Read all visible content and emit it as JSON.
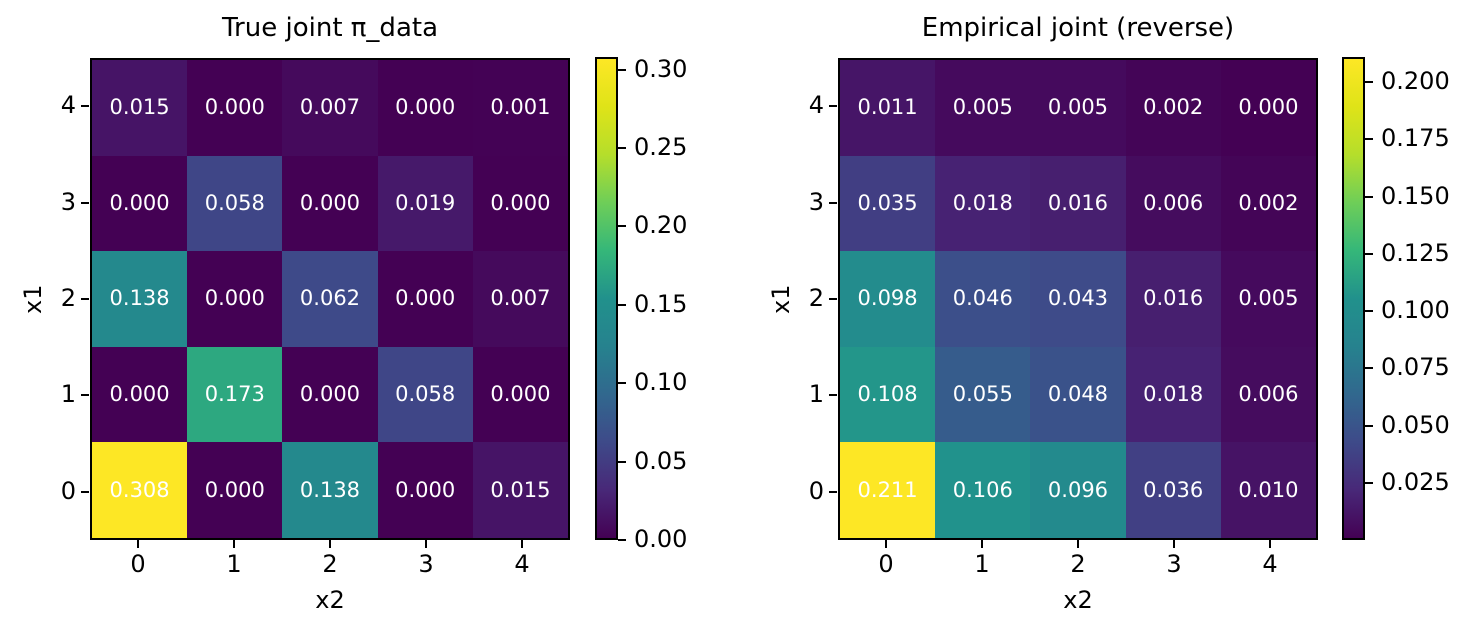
{
  "background": "#ffffff",
  "annotation_text_color": "#ffffff",
  "chart_data": [
    {
      "type": "heatmap",
      "title": "True joint π_data",
      "xlabel": "x2",
      "ylabel": "x1",
      "colormap": "viridis",
      "grid": false,
      "legend_position": "colorbar-right",
      "x_tick_labels": [
        "0",
        "1",
        "2",
        "3",
        "4"
      ],
      "y_tick_labels_top_to_bottom": [
        "4",
        "3",
        "2",
        "1",
        "0"
      ],
      "matrix_rows_top_to_bottom": [
        [
          0.015,
          0.0,
          0.007,
          0.0,
          0.001
        ],
        [
          0.0,
          0.058,
          0.0,
          0.019,
          0.0
        ],
        [
          0.138,
          0.0,
          0.062,
          0.0,
          0.007
        ],
        [
          0.0,
          0.173,
          0.0,
          0.058,
          0.0
        ],
        [
          0.308,
          0.0,
          0.138,
          0.0,
          0.015
        ]
      ],
      "cell_labels_top_to_bottom": [
        [
          "0.015",
          "0.000",
          "0.007",
          "0.000",
          "0.001"
        ],
        [
          "0.000",
          "0.058",
          "0.000",
          "0.019",
          "0.000"
        ],
        [
          "0.138",
          "0.000",
          "0.062",
          "0.000",
          "0.007"
        ],
        [
          "0.000",
          "0.173",
          "0.000",
          "0.058",
          "0.000"
        ],
        [
          "0.308",
          "0.000",
          "0.138",
          "0.000",
          "0.015"
        ]
      ],
      "vmin": 0.0,
      "vmax": 0.308,
      "colorbar_tick_values": [
        0.0,
        0.05,
        0.1,
        0.15,
        0.2,
        0.25,
        0.3
      ],
      "colorbar_tick_labels": [
        "0.00",
        "0.05",
        "0.10",
        "0.15",
        "0.20",
        "0.25",
        "0.30"
      ]
    },
    {
      "type": "heatmap",
      "title": "Empirical joint (reverse)",
      "xlabel": "x2",
      "ylabel": "x1",
      "colormap": "viridis",
      "grid": false,
      "legend_position": "colorbar-right",
      "x_tick_labels": [
        "0",
        "1",
        "2",
        "3",
        "4"
      ],
      "y_tick_labels_top_to_bottom": [
        "4",
        "3",
        "2",
        "1",
        "0"
      ],
      "matrix_rows_top_to_bottom": [
        [
          0.011,
          0.005,
          0.005,
          0.002,
          0.0
        ],
        [
          0.035,
          0.018,
          0.016,
          0.006,
          0.002
        ],
        [
          0.098,
          0.046,
          0.043,
          0.016,
          0.005
        ],
        [
          0.108,
          0.055,
          0.048,
          0.018,
          0.006
        ],
        [
          0.211,
          0.106,
          0.096,
          0.036,
          0.01
        ]
      ],
      "cell_labels_top_to_bottom": [
        [
          "0.011",
          "0.005",
          "0.005",
          "0.002",
          "0.000"
        ],
        [
          "0.035",
          "0.018",
          "0.016",
          "0.006",
          "0.002"
        ],
        [
          "0.098",
          "0.046",
          "0.043",
          "0.016",
          "0.005"
        ],
        [
          "0.108",
          "0.055",
          "0.048",
          "0.018",
          "0.006"
        ],
        [
          "0.211",
          "0.106",
          "0.096",
          "0.036",
          "0.010"
        ]
      ],
      "vmin": 0.0,
      "vmax": 0.211,
      "colorbar_tick_values": [
        0.025,
        0.05,
        0.075,
        0.1,
        0.125,
        0.15,
        0.175,
        0.2
      ],
      "colorbar_tick_labels": [
        "0.025",
        "0.050",
        "0.075",
        "0.100",
        "0.125",
        "0.150",
        "0.175",
        "0.200"
      ]
    }
  ]
}
